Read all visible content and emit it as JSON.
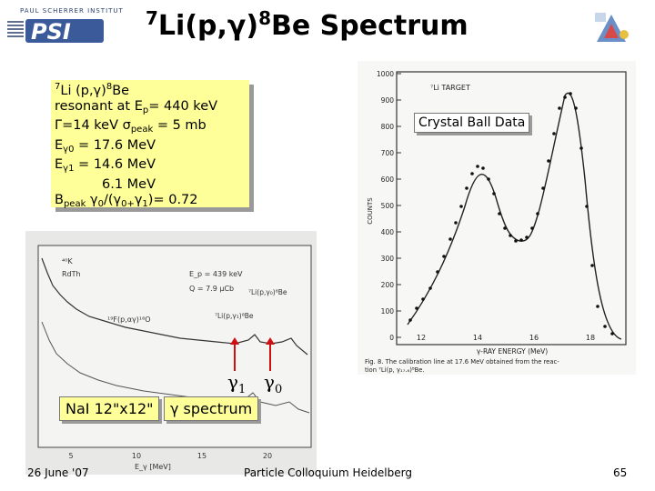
{
  "logo": {
    "institute": "PAUL SCHERRER INSTITUT",
    "mark": "PSI"
  },
  "title": {
    "pre_sup": "7",
    "part1": "Li(p,γ)",
    "mid_sup": "8",
    "part2": "Be Spectrum"
  },
  "info": {
    "line1": {
      "sup1": "7",
      "a": "Li (p,γ)",
      "sup2": "8",
      "b": "Be"
    },
    "line2": {
      "a": "resonant at E",
      "sub": "p",
      "b": "= 440 keV"
    },
    "line3": {
      "a": "Γ=14 keV  σ",
      "sub": "peak",
      "b": " = 5 mb"
    },
    "line4": {
      "a": "E",
      "sub": "γ0",
      "b": " = 17.6 MeV"
    },
    "line5": {
      "a": "E",
      "sub": "γ1",
      "b": " = 14.6 MeV"
    },
    "line6": "6.1 MeV",
    "line7": {
      "a": "B",
      "sub1": "peak",
      "g0": " γ",
      "sub2": "0",
      "mid": "/(γ",
      "sub3": "0+",
      "g1": "γ",
      "sub4": "1",
      "b": ")= 0.72"
    }
  },
  "crystal_ball": {
    "label": "Crystal Ball Data",
    "y_ticks": [
      "1000",
      "900",
      "800",
      "700",
      "600",
      "500",
      "400",
      "300",
      "200",
      "100",
      "0"
    ],
    "x_ticks": [
      "12",
      "14",
      "16",
      "18"
    ],
    "y_axis_label": "COUNTS",
    "target_label": "⁷Li TARGET",
    "x_axis_label": "γ-RAY ENERGY (MeV)",
    "caption_line1": "Fig. 8. The calibration line at 17.6 MeV obtained from the reac-",
    "caption_line2": "tion ⁷Li(p, γ₁₇.₆)⁸Be."
  },
  "nai_spectrum": {
    "label": "NaI 12\"x12\"",
    "spectrum_label": "γ spectrum",
    "gamma1": "γ",
    "gamma1_sub": "1",
    "gamma0": "γ",
    "gamma0_sub": "0",
    "annot_ep": "E_p = 439 keV",
    "annot_q": "Q = 7.9 μCb",
    "annot_k": "⁴⁰K",
    "annot_rdth": "RdTh",
    "annot_f": "¹⁹F(p,αγ)¹⁶O",
    "annot_li1": "⁷Li(p,γ₁)⁸Be",
    "annot_li0": "⁷Li(p,γ₀)⁸Be",
    "x_axis": "E_γ   [MeV]",
    "x_ticks": [
      "5",
      "10",
      "15",
      "20"
    ]
  },
  "colors": {
    "highlight": "#ffff99",
    "arrow": "#d01010",
    "logo_blue": "#2a3f6e"
  },
  "footer": {
    "date": "26 June '07",
    "center": "Particle Colloquium Heidelberg",
    "page": "65"
  }
}
